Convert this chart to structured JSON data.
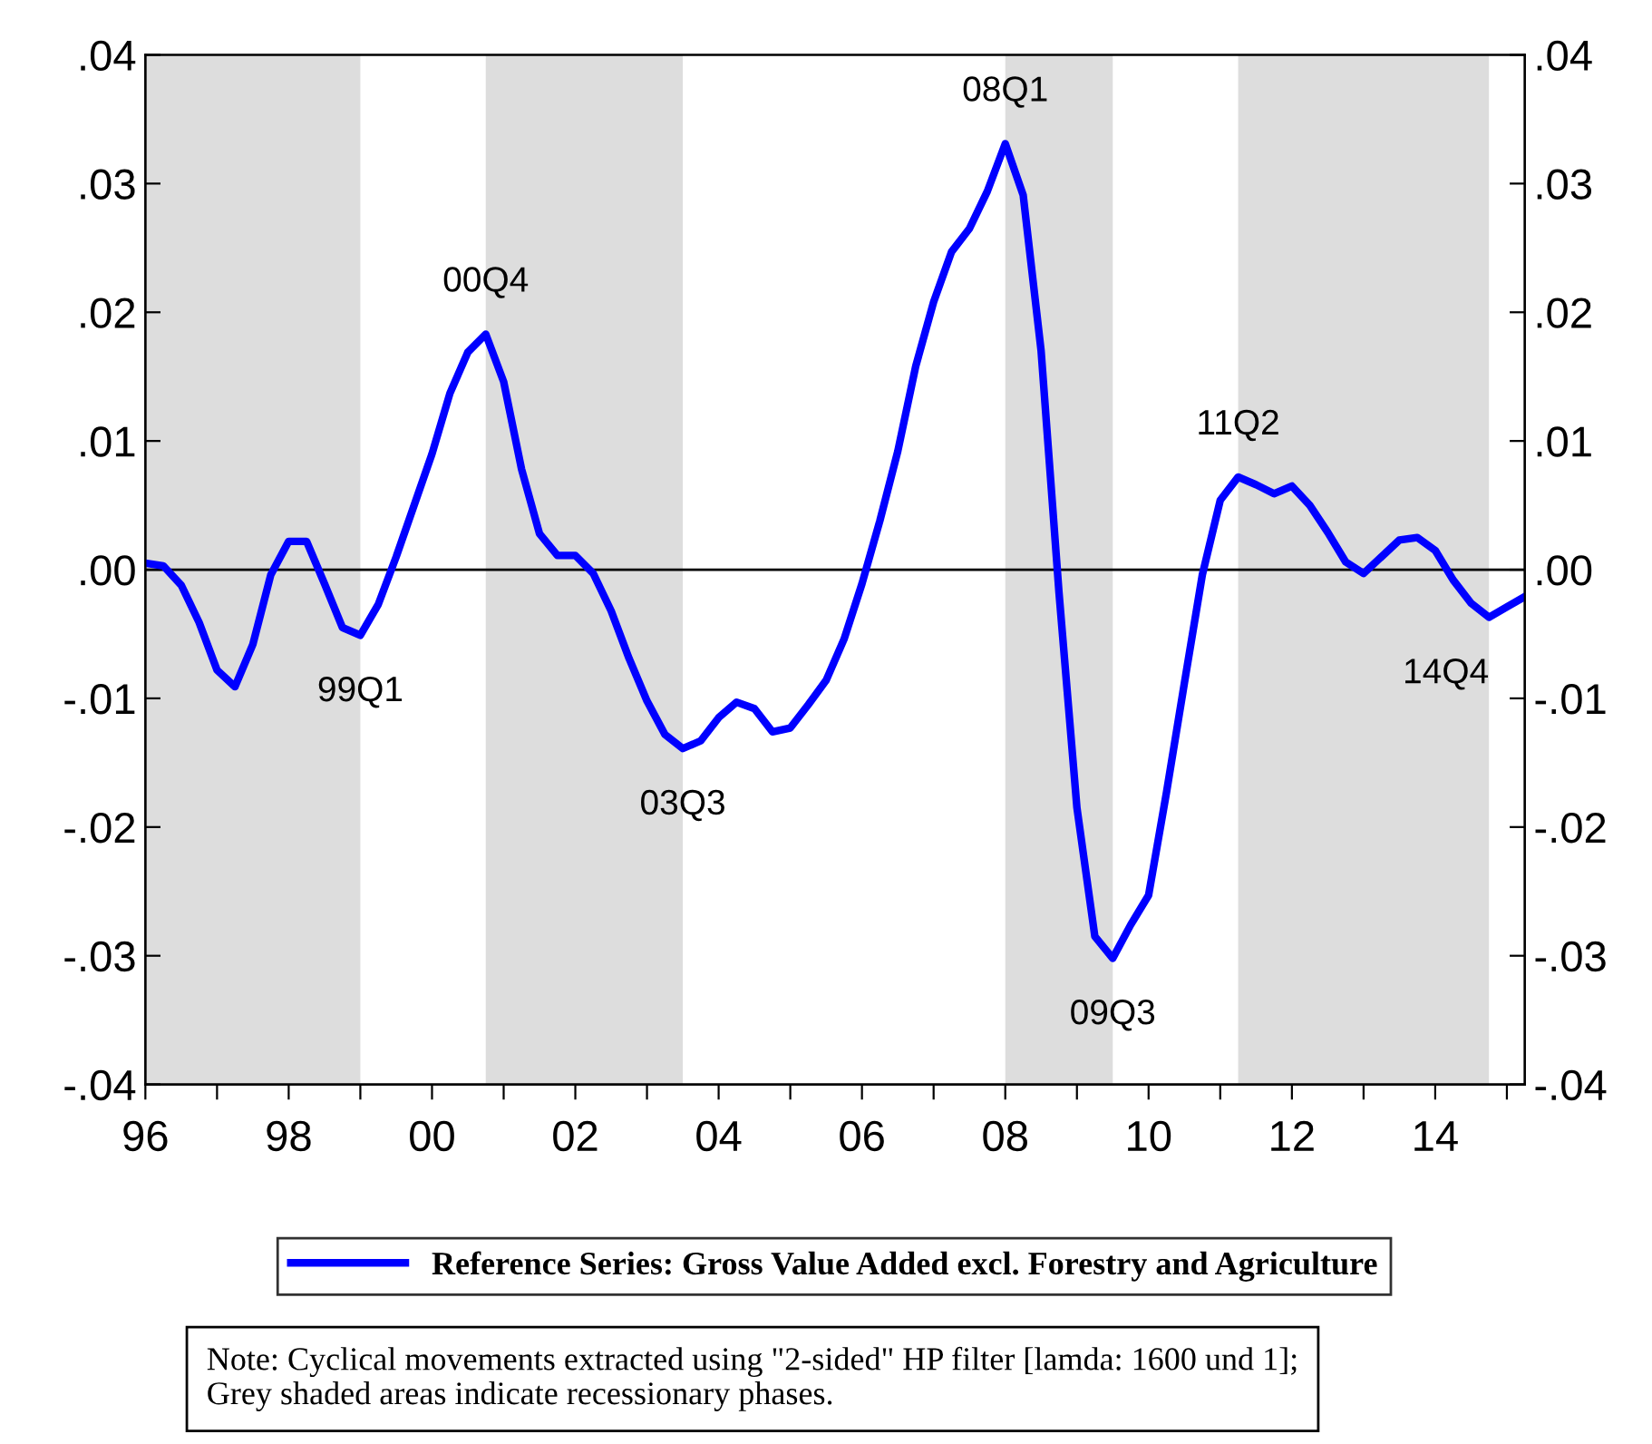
{
  "chart_data": {
    "type": "line",
    "x": [
      1996,
      1996.25,
      1996.5,
      1996.75,
      1997,
      1997.25,
      1997.5,
      1997.75,
      1998,
      1998.25,
      1998.5,
      1998.75,
      1999,
      1999.25,
      1999.5,
      1999.75,
      2000,
      2000.25,
      2000.5,
      2000.75,
      2001,
      2001.25,
      2001.5,
      2001.75,
      2002,
      2002.25,
      2002.5,
      2002.75,
      2003,
      2003.25,
      2003.5,
      2003.75,
      2004,
      2004.25,
      2004.5,
      2004.75,
      2005,
      2005.25,
      2005.5,
      2005.75,
      2006,
      2006.25,
      2006.5,
      2006.75,
      2007,
      2007.25,
      2007.5,
      2007.75,
      2008,
      2008.25,
      2008.5,
      2008.75,
      2009,
      2009.25,
      2009.5,
      2009.75,
      2010,
      2010.25,
      2010.5,
      2010.75,
      2011,
      2011.25,
      2011.5,
      2011.75,
      2012,
      2012.25,
      2012.5,
      2012.75,
      2013,
      2013.25,
      2013.5,
      2013.75,
      2014,
      2014.25,
      2014.5,
      2014.75,
      2015,
      2015.25
    ],
    "series": [
      {
        "name": "Reference Series: Gross Value Added excl. Forestry and Agriculture",
        "color": "#0000ff",
        "values": [
          0.0005,
          0.0003,
          -0.0012,
          -0.0041,
          -0.0078,
          -0.0091,
          -0.0058,
          -0.0004,
          0.0022,
          0.0022,
          -0.0011,
          -0.0045,
          -0.0051,
          -0.0027,
          0.001,
          0.005,
          0.009,
          0.0137,
          0.0169,
          0.0183,
          0.0146,
          0.0078,
          0.0028,
          0.0011,
          0.0011,
          -0.0003,
          -0.0032,
          -0.0069,
          -0.0102,
          -0.0128,
          -0.0139,
          -0.0133,
          -0.0115,
          -0.0103,
          -0.0108,
          -0.0126,
          -0.0123,
          -0.0105,
          -0.0086,
          -0.0054,
          -0.0011,
          0.0038,
          0.0092,
          0.0158,
          0.0208,
          0.0247,
          0.0265,
          0.0294,
          0.0331,
          0.0291,
          0.017,
          -0.0018,
          -0.0185,
          -0.0285,
          -0.0302,
          -0.0276,
          -0.0253,
          -0.0173,
          -0.0088,
          -0.0004,
          0.0054,
          0.0072,
          0.0066,
          0.0059,
          0.0065,
          0.005,
          0.0029,
          0.0006,
          -0.0003,
          0.001,
          0.0023,
          0.0025,
          0.0015,
          -0.0008,
          -0.0026,
          -0.0037,
          -0.0029,
          -0.0021
        ]
      }
    ],
    "xlim": [
      1996,
      2015.25
    ],
    "xticks": [
      {
        "value": 1996,
        "label": "96"
      },
      {
        "value": 1997,
        "label": null
      },
      {
        "value": 1998,
        "label": "98"
      },
      {
        "value": 1999,
        "label": null
      },
      {
        "value": 2000,
        "label": "00"
      },
      {
        "value": 2001,
        "label": null
      },
      {
        "value": 2002,
        "label": "02"
      },
      {
        "value": 2003,
        "label": null
      },
      {
        "value": 2004,
        "label": "04"
      },
      {
        "value": 2005,
        "label": null
      },
      {
        "value": 2006,
        "label": "06"
      },
      {
        "value": 2007,
        "label": null
      },
      {
        "value": 2008,
        "label": "08"
      },
      {
        "value": 2009,
        "label": null
      },
      {
        "value": 2010,
        "label": "10"
      },
      {
        "value": 2011,
        "label": null
      },
      {
        "value": 2012,
        "label": "12"
      },
      {
        "value": 2013,
        "label": null
      },
      {
        "value": 2014,
        "label": "14"
      },
      {
        "value": 2015,
        "label": null
      }
    ],
    "ylim": [
      -0.04,
      0.04
    ],
    "yticks": [
      {
        "value": -0.04,
        "label": "-.04"
      },
      {
        "value": -0.03,
        "label": "-.03"
      },
      {
        "value": -0.02,
        "label": "-.02"
      },
      {
        "value": -0.01,
        "label": "-.01"
      },
      {
        "value": 0,
        "label": ".00"
      },
      {
        "value": 0.01,
        "label": ".01"
      },
      {
        "value": 0.02,
        "label": ".02"
      },
      {
        "value": 0.03,
        "label": ".03"
      },
      {
        "value": 0.04,
        "label": ".04"
      }
    ],
    "y2lim": [
      -0.04,
      0.04
    ],
    "y2ticks": [
      {
        "value": -0.04,
        "label": "-.04"
      },
      {
        "value": -0.03,
        "label": "-.03"
      },
      {
        "value": -0.02,
        "label": "-.02"
      },
      {
        "value": -0.01,
        "label": "-.01"
      },
      {
        "value": 0,
        "label": ".00"
      },
      {
        "value": 0.01,
        "label": ".01"
      },
      {
        "value": 0.02,
        "label": ".02"
      },
      {
        "value": 0.03,
        "label": ".03"
      },
      {
        "value": 0.04,
        "label": ".04"
      }
    ],
    "ref_lines": [
      {
        "axis": "y",
        "value": 0,
        "color": "#000000"
      }
    ],
    "bands": [
      {
        "axis": "x",
        "from": 1996,
        "to": 1999,
        "color": "#dddddd"
      },
      {
        "axis": "x",
        "from": 2000.75,
        "to": 2003.5,
        "color": "#dddddd"
      },
      {
        "axis": "x",
        "from": 2008,
        "to": 2009.5,
        "color": "#dddddd"
      },
      {
        "axis": "x",
        "from": 2011.25,
        "to": 2014.75,
        "color": "#dddddd"
      }
    ],
    "annotations": [
      {
        "text": "99Q1",
        "x": 1999,
        "y": -0.0051
      },
      {
        "text": "00Q4",
        "x": 2000.75,
        "y": 0.0183
      },
      {
        "text": "03Q3",
        "x": 2003.5,
        "y": -0.0139
      },
      {
        "text": "08Q1",
        "x": 2008,
        "y": 0.0331
      },
      {
        "text": "09Q3",
        "x": 2009.5,
        "y": -0.0302
      },
      {
        "text": "11Q2",
        "x": 2011.25,
        "y": 0.0072
      },
      {
        "text": "14Q4",
        "x": 2014.75,
        "y": -0.0037
      },
      "Note: Cyclical movements extracted using \"2-sided\" HP filter [lamda: 1600 und 1];\nGrey shaded areas indicate recessionary phases."
    ],
    "legend": "bottom",
    "grid": false,
    "marker": "none",
    "line_style": "solid"
  }
}
